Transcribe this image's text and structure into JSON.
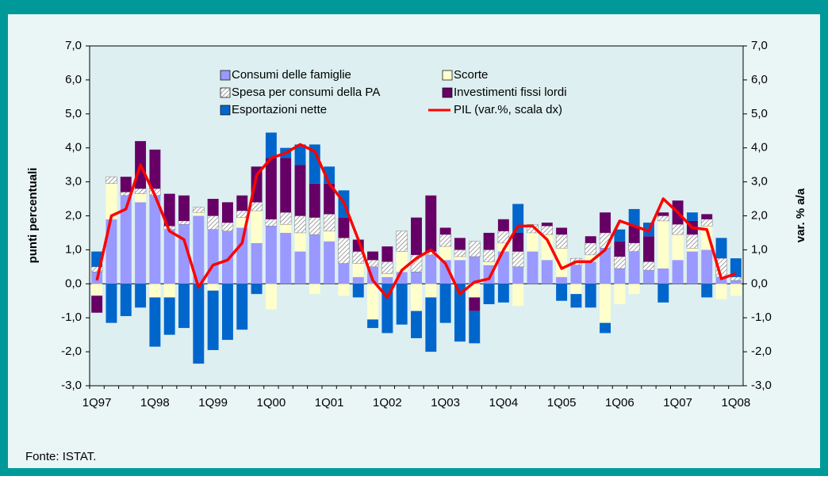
{
  "chart_data": {
    "type": "bar",
    "categories": [
      "1Q97",
      null,
      null,
      null,
      "1Q98",
      null,
      null,
      null,
      "1Q99",
      null,
      null,
      null,
      "1Q00",
      null,
      null,
      null,
      "1Q01",
      null,
      null,
      null,
      "1Q02",
      null,
      null,
      null,
      "1Q03",
      null,
      null,
      null,
      "1Q04",
      null,
      null,
      null,
      "1Q05",
      null,
      null,
      null,
      "1Q06",
      null,
      null,
      null,
      "1Q07",
      null,
      null,
      null,
      "1Q08"
    ],
    "y_label": "punti percentuali",
    "y2_label": "var. % a/a",
    "ylim": [
      -3,
      7
    ],
    "yticks": [
      {
        "value": -3,
        "label": "-3,0"
      },
      {
        "value": -2,
        "label": "-2,0"
      },
      {
        "value": -1,
        "label": "-1,0"
      },
      {
        "value": 0,
        "label": "0,0"
      },
      {
        "value": 1,
        "label": "1,0"
      },
      {
        "value": 2,
        "label": "2,0"
      },
      {
        "value": 3,
        "label": "3,0"
      },
      {
        "value": 4,
        "label": "4,0"
      },
      {
        "value": 5,
        "label": "5,0"
      },
      {
        "value": 6,
        "label": "6,0"
      },
      {
        "value": 7,
        "label": "7,0"
      }
    ],
    "y2lim": [
      -3,
      7
    ],
    "y2ticks": [
      {
        "value": -3,
        "label": "-3,0"
      },
      {
        "value": -2,
        "label": "-2,0"
      },
      {
        "value": -1,
        "label": "-1,0"
      },
      {
        "value": 0,
        "label": "0,0"
      },
      {
        "value": 1,
        "label": "1,0"
      },
      {
        "value": 2,
        "label": "2,0"
      },
      {
        "value": 3,
        "label": "3,0"
      },
      {
        "value": 4,
        "label": "4,0"
      },
      {
        "value": 5,
        "label": "5,0"
      },
      {
        "value": 6,
        "label": "6,0"
      },
      {
        "value": 7,
        "label": "7,0"
      }
    ],
    "series": [
      {
        "name": "Consumi delle famiglie",
        "color": "#9999ff",
        "values": [
          0.35,
          1.9,
          2.6,
          2.4,
          2.6,
          1.6,
          1.75,
          2.0,
          1.6,
          1.55,
          1.65,
          1.2,
          1.7,
          1.5,
          0.95,
          1.45,
          1.25,
          0.6,
          0.2,
          0.5,
          0.2,
          0.35,
          0.35,
          0.85,
          0.7,
          0.7,
          0.8,
          0.55,
          0.95,
          0.5,
          0.95,
          0.7,
          0.2,
          0.55,
          0.65,
          1.05,
          0.45,
          0.95,
          0.4,
          0.45,
          0.7,
          0.95,
          1.0,
          0.2,
          0.1
        ]
      },
      {
        "name": "Scorte",
        "color": "#ffffcc",
        "values": [
          -0.35,
          1.05,
          0,
          0.25,
          -0.4,
          -0.4,
          0,
          0.1,
          -0.2,
          0,
          0.3,
          0.95,
          -0.75,
          0.25,
          0.55,
          -0.3,
          0.3,
          -0.35,
          0.4,
          -1.05,
          0.1,
          0.6,
          -0.8,
          -0.4,
          0.4,
          0.1,
          -0.4,
          0.1,
          0.25,
          -0.65,
          0.55,
          0.75,
          0.85,
          -0.3,
          0.2,
          -1.15,
          -0.6,
          -0.3,
          0,
          1.4,
          0.75,
          0.1,
          0.7,
          -0.45,
          -0.35
        ]
      },
      {
        "name": "Spesa per consumi della PA",
        "color": "#808080",
        "values": [
          0.15,
          0.2,
          0.1,
          0.15,
          0.2,
          0.1,
          0.1,
          0.15,
          0.4,
          0.25,
          0.2,
          0.25,
          0.2,
          0.35,
          0.5,
          0.5,
          0.5,
          0.75,
          0.35,
          0.2,
          0.35,
          0.6,
          0.5,
          0.1,
          0.35,
          0.2,
          0.45,
          0.35,
          0.35,
          0.45,
          0.25,
          0.25,
          0.4,
          0.2,
          0.35,
          0.45,
          0.35,
          0.25,
          0.25,
          0.15,
          0.3,
          0.4,
          0.2,
          0.55,
          0.1
        ]
      },
      {
        "name": "Investimenti fissi lordi",
        "color": "#660066",
        "values": [
          -0.5,
          0,
          0.45,
          1.4,
          1.15,
          0.95,
          0.75,
          0,
          0.5,
          0.6,
          0.45,
          1.05,
          1.8,
          1.6,
          1.5,
          1.0,
          0.9,
          0.6,
          0.35,
          0.25,
          0.45,
          0,
          1.1,
          1.65,
          0.2,
          0.35,
          -0.4,
          0.5,
          0.35,
          0.55,
          0,
          0.1,
          0.2,
          0,
          0.2,
          0.6,
          0.45,
          0.5,
          0.75,
          0.1,
          0.7,
          0.4,
          0.15,
          0,
          0
        ]
      },
      {
        "name": "Esportazioni nette",
        "color": "#0066cc",
        "values": [
          0.45,
          -1.15,
          -0.95,
          -0.7,
          -1.45,
          -1.1,
          -1.3,
          -2.35,
          -1.75,
          -1.65,
          -1.35,
          -0.3,
          0.75,
          0.3,
          0.6,
          1.15,
          0.5,
          0.8,
          -0.4,
          -0.25,
          -1.45,
          -1.2,
          -0.8,
          -1.6,
          -1.15,
          -1.7,
          -0.95,
          -0.6,
          -0.55,
          0.85,
          0,
          0,
          -0.5,
          -0.4,
          -0.7,
          -0.3,
          0.35,
          0.5,
          0.4,
          -0.55,
          0,
          0.25,
          -0.4,
          0.6,
          0.55
        ]
      },
      {
        "name": "PIL (var.%, scala dx)",
        "color": "#ff0000",
        "type": "line",
        "axis": "y2",
        "values": [
          0.1,
          2.0,
          2.2,
          3.5,
          2.6,
          1.55,
          1.3,
          -0.1,
          0.55,
          0.7,
          1.2,
          3.2,
          3.7,
          3.85,
          4.1,
          3.9,
          2.95,
          2.4,
          1.3,
          0.1,
          -0.4,
          0.4,
          0.75,
          1.0,
          0.6,
          -0.3,
          0.05,
          0.15,
          1.0,
          1.7,
          1.7,
          1.3,
          0.45,
          0.65,
          0.65,
          1.0,
          1.85,
          1.7,
          1.55,
          2.5,
          2.1,
          1.65,
          1.6,
          0.15,
          0.3
        ]
      }
    ]
  },
  "source": "Fonte: ISTAT."
}
